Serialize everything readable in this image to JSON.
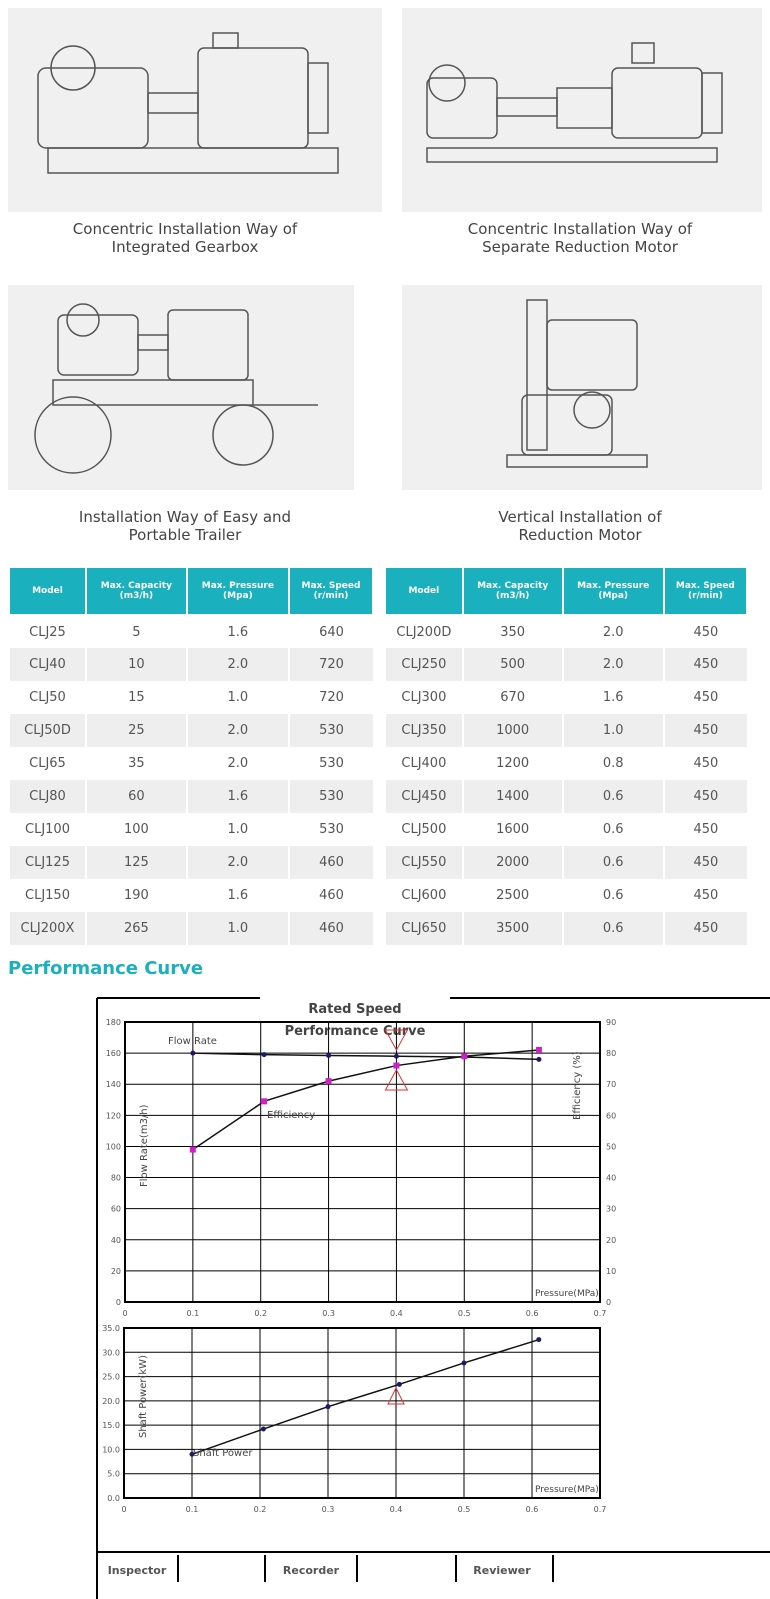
{
  "installations": [
    {
      "caption": [
        "Concentric Installation Way of",
        "Integrated Gearbox"
      ]
    },
    {
      "caption": [
        "Concentric Installation Way of",
        "Separate Reduction Motor"
      ]
    },
    {
      "caption": [
        "Installation Way of Easy and",
        "Portable Trailer"
      ]
    },
    {
      "caption": [
        "Vertical Installation of",
        "Reduction Motor"
      ]
    }
  ],
  "tables": {
    "headers": [
      [
        "Model"
      ],
      [
        "Max. Capacity",
        "(m3/h)"
      ],
      [
        "Max. Pressure",
        "(Mpa)"
      ],
      [
        "Max. Speed",
        "(r/min)"
      ]
    ],
    "left": [
      [
        "CLJ25",
        "5",
        "1.6",
        "640"
      ],
      [
        "CLJ40",
        "10",
        "2.0",
        "720"
      ],
      [
        "CLJ50",
        "15",
        "1.0",
        "720"
      ],
      [
        "CLJ50D",
        "25",
        "2.0",
        "530"
      ],
      [
        "CLJ65",
        "35",
        "2.0",
        "530"
      ],
      [
        "CLJ80",
        "60",
        "1.6",
        "530"
      ],
      [
        "CLJ100",
        "100",
        "1.0",
        "530"
      ],
      [
        "CLJ125",
        "125",
        "2.0",
        "460"
      ],
      [
        "CLJ150",
        "190",
        "1.6",
        "460"
      ],
      [
        "CLJ200X",
        "265",
        "1.0",
        "460"
      ]
    ],
    "right": [
      [
        "CLJ200D",
        "350",
        "2.0",
        "450"
      ],
      [
        "CLJ250",
        "500",
        "2.0",
        "450"
      ],
      [
        "CLJ300",
        "670",
        "1.6",
        "450"
      ],
      [
        "CLJ350",
        "1000",
        "1.0",
        "450"
      ],
      [
        "CLJ400",
        "1200",
        "0.8",
        "450"
      ],
      [
        "CLJ450",
        "1400",
        "0.6",
        "450"
      ],
      [
        "CLJ500",
        "1600",
        "0.6",
        "450"
      ],
      [
        "CLJ550",
        "2000",
        "0.6",
        "450"
      ],
      [
        "CLJ600",
        "2500",
        "0.6",
        "450"
      ],
      [
        "CLJ650",
        "3500",
        "0.6",
        "450"
      ]
    ]
  },
  "section_title": "Performance Curve",
  "colors": {
    "accent": "#1ab0be",
    "flow": "#1a1a6e",
    "efficiency": "#d020c8",
    "marker": "#e03030"
  },
  "chart_data": [
    {
      "type": "line",
      "title": [
        "Rated Speed",
        "Performance Curve"
      ],
      "xlabel": "Pressure(MPa)",
      "ylabel": "Flow Rate(m3/h)",
      "y2label": "Efficiency (%)",
      "xlim": [
        0,
        0.7
      ],
      "ylim": [
        0,
        180
      ],
      "y2lim": [
        0,
        90
      ],
      "grid": true,
      "xticks": [
        "0",
        "0.1",
        "0.2",
        "0.3",
        "0.4",
        "0.5",
        "0.6",
        "0.7"
      ],
      "yticks": [
        "0",
        "20",
        "40",
        "60",
        "80",
        "100",
        "120",
        "140",
        "160",
        "180"
      ],
      "y2ticks": [
        "0",
        "10",
        "20",
        "30",
        "40",
        "50",
        "60",
        "70",
        "80",
        "90"
      ],
      "series": [
        {
          "name": "Flow Rate",
          "axis": "left",
          "x": [
            0.1,
            0.205,
            0.3,
            0.4,
            0.5,
            0.61
          ],
          "values": [
            160,
            159,
            158.5,
            158,
            157.5,
            156
          ]
        },
        {
          "name": "Efficiency",
          "axis": "right",
          "x": [
            0.1,
            0.205,
            0.3,
            0.4,
            0.5,
            0.61
          ],
          "values": [
            49,
            64.5,
            71,
            76,
            79,
            81
          ]
        }
      ],
      "rated_point_x": 0.4
    },
    {
      "type": "line",
      "xlabel": "Pressure(MPa)",
      "ylabel": "Shaft Power(kW)",
      "xlim": [
        0,
        0.7
      ],
      "ylim": [
        0,
        35
      ],
      "grid": true,
      "xticks": [
        "0",
        "0.1",
        "0.2",
        "0.3",
        "0.4",
        "0.5",
        "0.6",
        "0.7"
      ],
      "yticks": [
        "0.0",
        "5.0",
        "10.0",
        "15.0",
        "20.0",
        "25.0",
        "30.0",
        "35.0"
      ],
      "series": [
        {
          "name": "Shaft Power",
          "x": [
            0.1,
            0.205,
            0.3,
            0.405,
            0.5,
            0.61
          ],
          "values": [
            9.0,
            14.2,
            18.8,
            23.4,
            27.8,
            32.6
          ]
        }
      ],
      "rated_point_x": 0.4
    }
  ],
  "signoff": [
    "Inspector",
    "Recorder",
    "Reviewer"
  ]
}
